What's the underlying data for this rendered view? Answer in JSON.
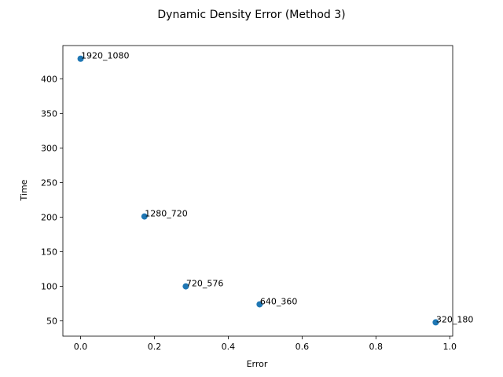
{
  "chart_data": {
    "type": "scatter",
    "title": "Dynamic Density Error (Method 3)",
    "xlabel": "Error",
    "ylabel": "Time",
    "xlim": [
      -0.048,
      1.008
    ],
    "ylim": [
      28.0,
      448.0
    ],
    "xticks": [
      0.0,
      0.2,
      0.4,
      0.6,
      0.8,
      1.0
    ],
    "xtick_labels": [
      "0.0",
      "0.2",
      "0.4",
      "0.6",
      "0.8",
      "1.0"
    ],
    "yticks": [
      50,
      100,
      150,
      200,
      250,
      300,
      350,
      400
    ],
    "ytick_labels": [
      "50",
      "100",
      "150",
      "200",
      "250",
      "300",
      "350",
      "400"
    ],
    "grid": false,
    "marker_color": "#1f77b4",
    "points": [
      {
        "label": "1920_1080",
        "x": 0.0,
        "y": 429
      },
      {
        "label": "1280_720",
        "x": 0.173,
        "y": 201
      },
      {
        "label": "720_576",
        "x": 0.285,
        "y": 100
      },
      {
        "label": "640_360",
        "x": 0.485,
        "y": 74
      },
      {
        "label": "320_180",
        "x": 0.962,
        "y": 48
      }
    ]
  }
}
